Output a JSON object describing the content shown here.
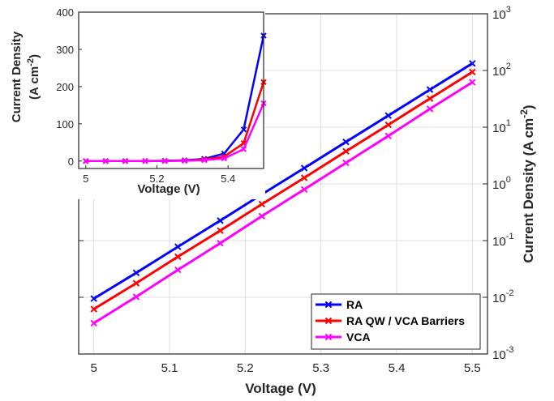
{
  "chart_data": [
    {
      "type": "line",
      "x": [
        5.0,
        5.056,
        5.111,
        5.167,
        5.222,
        5.278,
        5.333,
        5.389,
        5.444,
        5.5
      ],
      "series": [
        {
          "name": "RA",
          "color": "#0000ff",
          "values": [
            0.0095,
            0.027,
            0.078,
            0.225,
            0.655,
            1.9,
            5.5,
            16,
            46,
            133
          ]
        },
        {
          "name": "RA QW / VCA Barriers",
          "color": "#ff0000",
          "values": [
            0.0062,
            0.0177,
            0.052,
            0.15,
            0.44,
            1.28,
            3.75,
            11,
            32,
            94
          ]
        },
        {
          "name": "VCA",
          "color": "#ff00ff",
          "values": [
            0.0035,
            0.0102,
            0.0305,
            0.09,
            0.27,
            0.8,
            2.35,
            7.0,
            21,
            62
          ]
        }
      ],
      "xlabel": "Voltage (V)",
      "ylabel": "Current Density (A cm",
      "ylabel_sup": "-2",
      "ylabel_close": ")",
      "xlim": [
        4.98,
        5.52
      ],
      "ylim": [
        0.001,
        1000
      ],
      "yscale": "log",
      "xticks": [
        "5",
        "5.1",
        "5.2",
        "5.3",
        "5.4",
        "5.5"
      ],
      "yticks": [
        {
          "base": "10",
          "exp": "-3"
        },
        {
          "base": "10",
          "exp": "-2"
        },
        {
          "base": "10",
          "exp": "-1"
        },
        {
          "base": "10",
          "exp": "0"
        },
        {
          "base": "10",
          "exp": "1"
        },
        {
          "base": "10",
          "exp": "2"
        },
        {
          "base": "10",
          "exp": "3"
        }
      ],
      "grid": true,
      "legend": "bottom-right"
    },
    {
      "type": "line",
      "x": [
        5.0,
        5.056,
        5.111,
        5.167,
        5.222,
        5.278,
        5.333,
        5.389,
        5.444,
        5.5
      ],
      "series": [
        {
          "name": "RA",
          "values": [
            0,
            0,
            0,
            0.2,
            0.7,
            2,
            6,
            20,
            85,
            337
          ]
        },
        {
          "name": "RA QW / VCA Barriers",
          "values": [
            0,
            0,
            0,
            0.1,
            0.4,
            1.3,
            4,
            12,
            48,
            212
          ]
        },
        {
          "name": "VCA",
          "values": [
            0,
            0,
            0,
            0.05,
            0.3,
            0.8,
            2.5,
            7,
            32,
            155
          ]
        }
      ],
      "xlabel": "Voltage (V)",
      "ylabel_line1": "Current Density",
      "ylabel_line2": "(A cm",
      "ylabel_sup": "-2",
      "ylabel_close": ")",
      "xlim": [
        4.98,
        5.5
      ],
      "ylim": [
        -20,
        400
      ],
      "xticks": [
        "5",
        "5.2",
        "5.4"
      ],
      "yticks": [
        "0",
        "100",
        "200",
        "300",
        "400"
      ],
      "grid": false,
      "position": "top-left inset"
    }
  ]
}
